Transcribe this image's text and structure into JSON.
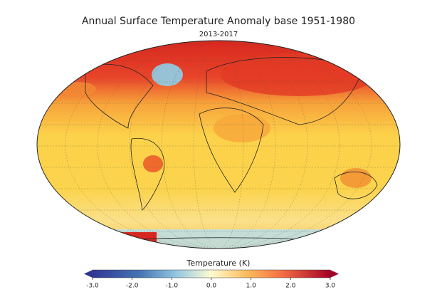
{
  "title": "Annual Surface Temperature Anomaly base 1951-1980",
  "subtitle": "2013-2017",
  "colorbar": {
    "label": "Temperature (K)",
    "lim": [
      -3,
      3
    ],
    "ticks": [
      {
        "value": -3,
        "label": "-3.0"
      },
      {
        "value": -2,
        "label": "-2.0"
      },
      {
        "value": -1,
        "label": "-1.0"
      },
      {
        "value": 0,
        "label": "0.0"
      },
      {
        "value": 1,
        "label": "1.0"
      },
      {
        "value": 2,
        "label": "2.0"
      },
      {
        "value": 3,
        "label": "3.0"
      }
    ]
  }
}
